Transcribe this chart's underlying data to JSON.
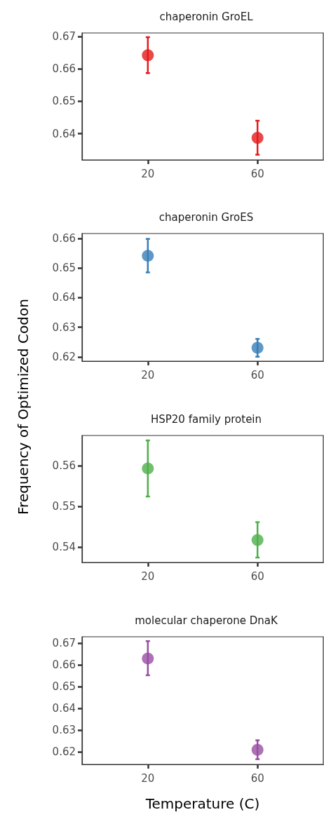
{
  "chart_data": [
    {
      "type": "scatter",
      "title": "chaperonin GroEL",
      "categories": [
        "20",
        "60"
      ],
      "values": [
        0.6642,
        0.6387
      ],
      "errors": [
        [
          0.6587,
          0.6698
        ],
        [
          0.6335,
          0.644
        ]
      ],
      "color": "#e41a1c",
      "marker": "circle",
      "ylim": [
        0.6319,
        0.6711
      ],
      "yticks": [
        0.64,
        0.65,
        0.66,
        0.67
      ],
      "grid": false
    },
    {
      "type": "scatter",
      "title": "chaperonin GroES",
      "ylabel": "Frequency of Optimized Codon",
      "categories": [
        "20",
        "60"
      ],
      "values": [
        0.6541,
        0.6231
      ],
      "errors": [
        [
          0.6485,
          0.6598
        ],
        [
          0.6201,
          0.6261
        ]
      ],
      "color": "#377eb8",
      "marker": "circle",
      "ylim": [
        0.6186,
        0.6616
      ],
      "yticks": [
        0.62,
        0.63,
        0.64,
        0.65,
        0.66
      ],
      "grid": false
    },
    {
      "type": "scatter",
      "title": "HSP20 family protein",
      "categories": [
        "20",
        "60"
      ],
      "values": [
        0.5593,
        0.5417
      ],
      "errors": [
        [
          0.5524,
          0.5662
        ],
        [
          0.5374,
          0.5461
        ]
      ],
      "color": "#4daf4a",
      "marker": "circle",
      "ylim": [
        0.5362,
        0.5674
      ],
      "yticks": [
        0.54,
        0.55,
        0.56
      ],
      "grid": false
    },
    {
      "type": "scatter",
      "title": "molecular chaperone DnaK",
      "xlabel": "Temperature (C)",
      "categories": [
        "20",
        "60"
      ],
      "values": [
        0.663,
        0.621
      ],
      "errors": [
        [
          0.6553,
          0.671
        ],
        [
          0.6167,
          0.6254
        ]
      ],
      "color": "#984ea3",
      "marker": "circle",
      "ylim": [
        0.6143,
        0.673
      ],
      "yticks": [
        0.62,
        0.63,
        0.64,
        0.65,
        0.66,
        0.67
      ],
      "grid": false
    }
  ]
}
